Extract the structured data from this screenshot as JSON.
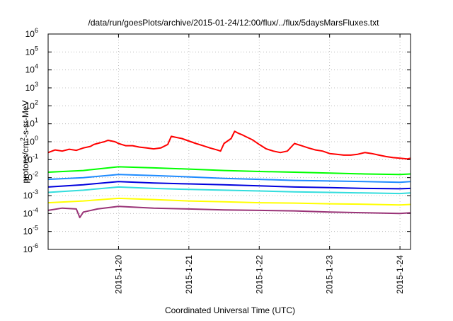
{
  "chart_data": {
    "type": "line",
    "title": "/data/run/goesPlots/archive/2015-01-24/12:00/flux/../flux/5daysMarsFluxes.txt",
    "xlabel": "Coordinated Universal Time (UTC)",
    "ylabel": "protons/cm²-s-sr-MeV",
    "ylabel_parts": {
      "prefix": "protons/cm",
      "sup": "2",
      "suffix": "-s-sr-MeV"
    },
    "xlim": [
      0,
      5.15
    ],
    "x_ticks": [
      {
        "x": 1,
        "label": "2015-1-20"
      },
      {
        "x": 2,
        "label": "2015-1-21"
      },
      {
        "x": 3,
        "label": "2015-1-22"
      },
      {
        "x": 4,
        "label": "2015-1-23"
      },
      {
        "x": 5,
        "label": "2015-1-24"
      }
    ],
    "y_scale": "log",
    "ylim": [
      1e-06,
      1000000.0
    ],
    "y_ticks": [
      {
        "exp": -6,
        "base": "10",
        "sup": "-6"
      },
      {
        "exp": -5,
        "base": "10",
        "sup": "-5"
      },
      {
        "exp": -4,
        "base": "10",
        "sup": "-4"
      },
      {
        "exp": -3,
        "base": "10",
        "sup": "-3"
      },
      {
        "exp": -2,
        "base": "10",
        "sup": "-2"
      },
      {
        "exp": -1,
        "base": "10",
        "sup": "-1"
      },
      {
        "exp": 0,
        "base": "10",
        "sup": "0"
      },
      {
        "exp": 1,
        "base": "10",
        "sup": "1"
      },
      {
        "exp": 2,
        "base": "10",
        "sup": "2"
      },
      {
        "exp": 3,
        "base": "10",
        "sup": "3"
      },
      {
        "exp": 4,
        "base": "10",
        "sup": "4"
      },
      {
        "exp": 5,
        "base": "10",
        "sup": "5"
      },
      {
        "exp": 6,
        "base": "10",
        "sup": "6"
      }
    ],
    "grid": true,
    "series": [
      {
        "color": "#ff0000",
        "x": [
          0,
          0.1,
          0.2,
          0.3,
          0.4,
          0.5,
          0.6,
          0.65,
          0.7,
          0.75,
          0.8,
          0.85,
          0.9,
          0.95,
          1.0,
          1.1,
          1.2,
          1.3,
          1.4,
          1.5,
          1.6,
          1.7,
          1.75,
          1.8,
          1.9,
          2.0,
          2.1,
          2.2,
          2.3,
          2.4,
          2.45,
          2.5,
          2.6,
          2.65,
          2.7,
          2.75,
          2.8,
          2.9,
          3.0,
          3.1,
          3.2,
          3.3,
          3.4,
          3.5,
          3.6,
          3.7,
          3.8,
          3.9,
          4.0,
          4.1,
          4.2,
          4.3,
          4.4,
          4.5,
          4.6,
          4.7,
          4.8,
          4.9,
          5.0,
          5.1,
          5.15
        ],
        "y": [
          0.25,
          0.35,
          0.3,
          0.38,
          0.33,
          0.45,
          0.55,
          0.7,
          0.8,
          0.9,
          1.0,
          1.2,
          1.1,
          1.0,
          0.8,
          0.6,
          0.6,
          0.5,
          0.45,
          0.4,
          0.45,
          0.7,
          2.0,
          1.8,
          1.5,
          1.1,
          0.8,
          0.6,
          0.45,
          0.35,
          0.3,
          0.8,
          1.5,
          3.8,
          3.0,
          2.5,
          2.0,
          1.3,
          0.7,
          0.4,
          0.3,
          0.25,
          0.3,
          0.8,
          0.6,
          0.45,
          0.35,
          0.3,
          0.22,
          0.2,
          0.18,
          0.18,
          0.2,
          0.25,
          0.22,
          0.18,
          0.15,
          0.13,
          0.12,
          0.11,
          0.12
        ]
      },
      {
        "color": "#00ff00",
        "x": [
          0,
          0.5,
          1.0,
          1.5,
          2.0,
          2.5,
          3.0,
          3.5,
          4.0,
          4.5,
          5.0,
          5.15
        ],
        "y": [
          0.02,
          0.025,
          0.04,
          0.035,
          0.03,
          0.025,
          0.022,
          0.02,
          0.018,
          0.016,
          0.015,
          0.016
        ]
      },
      {
        "color": "#1e8bff",
        "x": [
          0,
          0.5,
          1.0,
          1.5,
          2.0,
          2.5,
          3.0,
          3.5,
          4.0,
          4.5,
          5.0,
          5.15
        ],
        "y": [
          0.008,
          0.01,
          0.015,
          0.013,
          0.011,
          0.009,
          0.008,
          0.007,
          0.0065,
          0.006,
          0.0055,
          0.006
        ]
      },
      {
        "color": "#0000dd",
        "x": [
          0,
          0.5,
          1.0,
          1.5,
          2.0,
          2.5,
          3.0,
          3.5,
          4.0,
          4.5,
          5.0,
          5.15
        ],
        "y": [
          0.003,
          0.004,
          0.006,
          0.005,
          0.0045,
          0.004,
          0.0035,
          0.003,
          0.0028,
          0.0025,
          0.0024,
          0.0025
        ]
      },
      {
        "color": "#33dddd",
        "x": [
          0,
          0.5,
          1.0,
          1.5,
          2.0,
          2.5,
          3.0,
          3.5,
          4.0,
          4.5,
          5.0,
          5.15
        ],
        "y": [
          0.0015,
          0.002,
          0.003,
          0.0025,
          0.0022,
          0.002,
          0.0018,
          0.0016,
          0.0015,
          0.0014,
          0.0013,
          0.0014
        ]
      },
      {
        "color": "#ffff00",
        "x": [
          0,
          0.5,
          1.0,
          1.5,
          2.0,
          2.5,
          3.0,
          3.5,
          4.0,
          4.5,
          5.0,
          5.15
        ],
        "y": [
          0.0004,
          0.0005,
          0.0007,
          0.0006,
          0.0005,
          0.00045,
          0.0004,
          0.00038,
          0.00035,
          0.00033,
          0.0003,
          0.00032
        ]
      },
      {
        "color": "#993377",
        "x": [
          0,
          0.2,
          0.4,
          0.45,
          0.5,
          0.7,
          1.0,
          1.5,
          2.0,
          2.5,
          3.0,
          3.5,
          4.0,
          4.5,
          5.0,
          5.15
        ],
        "y": [
          0.00015,
          0.0002,
          0.00018,
          6e-05,
          0.00012,
          0.00018,
          0.00025,
          0.0002,
          0.00018,
          0.00016,
          0.00015,
          0.00014,
          0.00012,
          0.00011,
          0.0001,
          0.00011
        ]
      }
    ]
  }
}
